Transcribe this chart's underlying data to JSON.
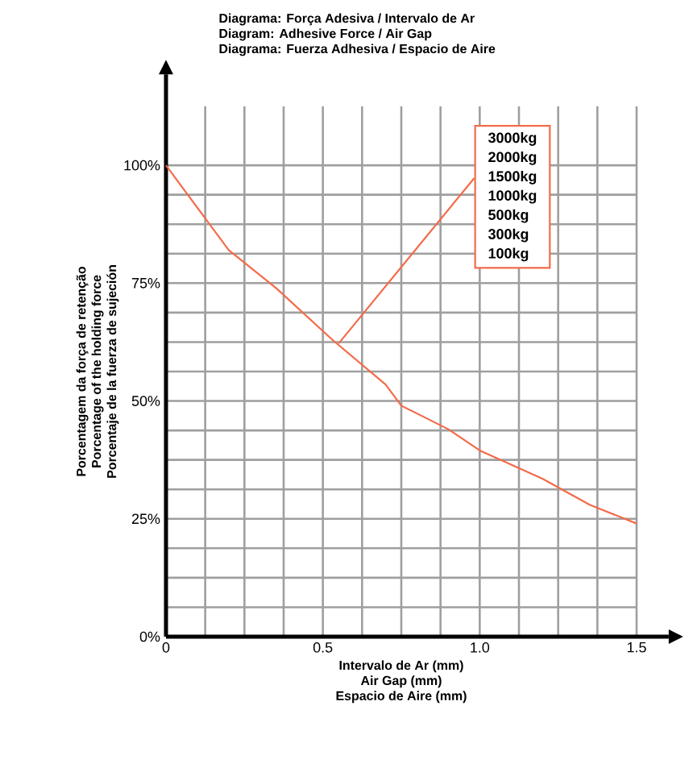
{
  "chart_data": {
    "type": "line",
    "title": "Diagrama: Força Adesiva / Intervalo de Ar\nDiagram: Adhesive Force / Air Gap\nDiagrama: Fuerza Adhesiva / Espacio de Aire",
    "xlabel": "Intervalo de Ar (mm)\nAir Gap (mm)\nEspacio de Aire (mm)",
    "ylabel": "Porcentagem da força de retenção\nPorcentage of the holding force\nPorcentaje de la fuerza de sujeción",
    "x": [
      0,
      0.2,
      0.35,
      0.53,
      0.7,
      0.75,
      0.9,
      1.0,
      1.2,
      1.35,
      1.5
    ],
    "series": [
      {
        "color": "#f26b4a",
        "values": [
          100,
          82,
          74,
          63,
          53.5,
          49,
          44,
          39.5,
          33.5,
          28,
          24
        ]
      }
    ],
    "xlim": [
      0,
      1.5
    ],
    "ylim": [
      0,
      112.5
    ],
    "xticks": [
      0,
      0.5,
      {
        "value": 1.0,
        "label": "1.0"
      },
      1.5
    ],
    "yticks": [
      {
        "value": 0,
        "label": "0%"
      },
      {
        "value": 25,
        "label": "25%"
      },
      {
        "value": 50,
        "label": "50%"
      },
      {
        "value": 75,
        "label": "75%"
      },
      {
        "value": 100,
        "label": "100%"
      }
    ],
    "grid": true,
    "marker": "none",
    "line_style": "solid",
    "annotations": [
      "3000kg",
      "2000kg",
      "1500kg",
      "1000kg",
      "500kg",
      "300kg",
      "100kg"
    ]
  }
}
